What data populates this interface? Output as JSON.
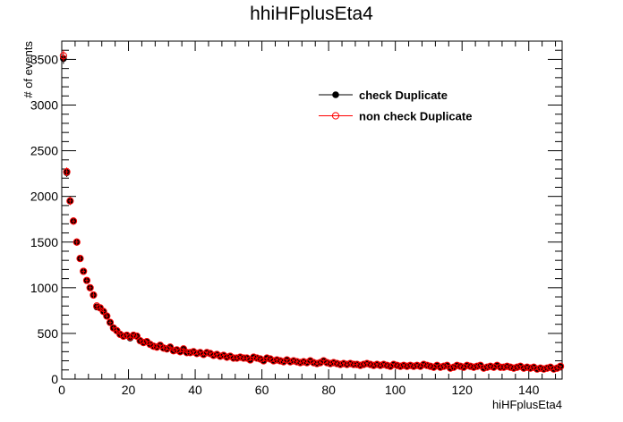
{
  "chart_data": {
    "type": "scatter",
    "title": "hhiHFplusEta4",
    "xlabel": "hiHFplusEta4",
    "ylabel": "# of events",
    "xlim": [
      0,
      150
    ],
    "ylim": [
      0,
      3700
    ],
    "x_ticks": [
      0,
      20,
      40,
      60,
      80,
      100,
      120,
      140
    ],
    "y_ticks": [
      0,
      500,
      1000,
      1500,
      2000,
      2500,
      3000,
      3500
    ],
    "grid": false,
    "legend_position": "top-right",
    "series": [
      {
        "name": "check Duplicate",
        "color": "#000000",
        "marker": "filled-circle",
        "x": [
          0.5,
          1.5,
          2.5,
          3.5,
          4.5,
          5.5,
          6.5,
          7.5,
          8.5,
          9.5,
          10.5,
          11.5,
          12.5,
          13.5,
          14.5,
          15.5,
          16.5,
          17.5,
          18.5,
          19.5,
          20.5,
          21.5,
          22.5,
          23.5,
          24.5,
          25.5,
          26.5,
          27.5,
          28.5,
          29.5,
          30.5,
          31.5,
          32.5,
          33.5,
          34.5,
          35.5,
          36.5,
          37.5,
          38.5,
          39.5,
          40.5,
          41.5,
          42.5,
          43.5,
          44.5,
          45.5,
          46.5,
          47.5,
          48.5,
          49.5,
          50.5,
          51.5,
          52.5,
          53.5,
          54.5,
          55.5,
          56.5,
          57.5,
          58.5,
          59.5,
          60.5,
          61.5,
          62.5,
          63.5,
          64.5,
          65.5,
          66.5,
          67.5,
          68.5,
          69.5,
          70.5,
          71.5,
          72.5,
          73.5,
          74.5,
          75.5,
          76.5,
          77.5,
          78.5,
          79.5,
          80.5,
          81.5,
          82.5,
          83.5,
          84.5,
          85.5,
          86.5,
          87.5,
          88.5,
          89.5,
          90.5,
          91.5,
          92.5,
          93.5,
          94.5,
          95.5,
          96.5,
          97.5,
          98.5,
          99.5,
          100.5,
          101.5,
          102.5,
          103.5,
          104.5,
          105.5,
          106.5,
          107.5,
          108.5,
          109.5,
          110.5,
          111.5,
          112.5,
          113.5,
          114.5,
          115.5,
          116.5,
          117.5,
          118.5,
          119.5,
          120.5,
          121.5,
          122.5,
          123.5,
          124.5,
          125.5,
          126.5,
          127.5,
          128.5,
          129.5,
          130.5,
          131.5,
          132.5,
          133.5,
          134.5,
          135.5,
          136.5,
          137.5,
          138.5,
          139.5,
          140.5,
          141.5,
          142.5,
          143.5,
          144.5,
          145.5,
          146.5,
          147.5,
          148.5,
          149.5
        ],
        "y": [
          3510,
          2260,
          1950,
          1730,
          1500,
          1320,
          1180,
          1080,
          1000,
          920,
          790,
          780,
          740,
          690,
          620,
          560,
          530,
          490,
          470,
          480,
          450,
          480,
          470,
          420,
          400,
          410,
          380,
          360,
          350,
          370,
          340,
          330,
          350,
          310,
          320,
          300,
          330,
          290,
          290,
          300,
          280,
          290,
          270,
          290,
          280,
          260,
          270,
          250,
          260,
          240,
          250,
          230,
          230,
          240,
          230,
          230,
          210,
          240,
          230,
          220,
          200,
          230,
          220,
          200,
          210,
          200,
          190,
          210,
          190,
          200,
          190,
          180,
          190,
          180,
          200,
          180,
          170,
          180,
          200,
          180,
          170,
          180,
          170,
          160,
          170,
          160,
          170,
          160,
          160,
          150,
          160,
          170,
          160,
          150,
          160,
          150,
          160,
          150,
          140,
          160,
          150,
          140,
          150,
          140,
          150,
          140,
          150,
          140,
          160,
          150,
          140,
          130,
          150,
          130,
          140,
          150,
          120,
          130,
          150,
          140,
          130,
          150,
          140,
          130,
          140,
          150,
          120,
          130,
          140,
          130,
          150,
          130,
          130,
          140,
          130,
          120,
          130,
          140,
          120,
          130,
          120,
          130,
          110,
          120,
          110,
          120,
          130,
          110,
          120,
          140
        ]
      },
      {
        "name": "non check Duplicate",
        "color": "#ff0000",
        "marker": "open-circle",
        "x": [
          0.5,
          1.5,
          2.5,
          3.5,
          4.5,
          5.5,
          6.5,
          7.5,
          8.5,
          9.5,
          10.5,
          11.5,
          12.5,
          13.5,
          14.5,
          15.5,
          16.5,
          17.5,
          18.5,
          19.5,
          20.5,
          21.5,
          22.5,
          23.5,
          24.5,
          25.5,
          26.5,
          27.5,
          28.5,
          29.5,
          30.5,
          31.5,
          32.5,
          33.5,
          34.5,
          35.5,
          36.5,
          37.5,
          38.5,
          39.5,
          40.5,
          41.5,
          42.5,
          43.5,
          44.5,
          45.5,
          46.5,
          47.5,
          48.5,
          49.5,
          50.5,
          51.5,
          52.5,
          53.5,
          54.5,
          55.5,
          56.5,
          57.5,
          58.5,
          59.5,
          60.5,
          61.5,
          62.5,
          63.5,
          64.5,
          65.5,
          66.5,
          67.5,
          68.5,
          69.5,
          70.5,
          71.5,
          72.5,
          73.5,
          74.5,
          75.5,
          76.5,
          77.5,
          78.5,
          79.5,
          80.5,
          81.5,
          82.5,
          83.5,
          84.5,
          85.5,
          86.5,
          87.5,
          88.5,
          89.5,
          90.5,
          91.5,
          92.5,
          93.5,
          94.5,
          95.5,
          96.5,
          97.5,
          98.5,
          99.5,
          100.5,
          101.5,
          102.5,
          103.5,
          104.5,
          105.5,
          106.5,
          107.5,
          108.5,
          109.5,
          110.5,
          111.5,
          112.5,
          113.5,
          114.5,
          115.5,
          116.5,
          117.5,
          118.5,
          119.5,
          120.5,
          121.5,
          122.5,
          123.5,
          124.5,
          125.5,
          126.5,
          127.5,
          128.5,
          129.5,
          130.5,
          131.5,
          132.5,
          133.5,
          134.5,
          135.5,
          136.5,
          137.5,
          138.5,
          139.5,
          140.5,
          141.5,
          142.5,
          143.5,
          144.5,
          145.5,
          146.5,
          147.5,
          148.5,
          149.5
        ],
        "y": [
          3540,
          2270,
          1950,
          1730,
          1500,
          1320,
          1180,
          1080,
          1000,
          920,
          800,
          780,
          740,
          690,
          620,
          560,
          530,
          490,
          470,
          480,
          460,
          480,
          470,
          420,
          400,
          410,
          380,
          360,
          350,
          370,
          340,
          330,
          350,
          310,
          320,
          300,
          330,
          290,
          290,
          300,
          280,
          290,
          270,
          290,
          280,
          260,
          270,
          250,
          260,
          240,
          250,
          230,
          230,
          240,
          230,
          230,
          210,
          240,
          230,
          220,
          200,
          230,
          220,
          200,
          210,
          200,
          190,
          210,
          190,
          200,
          190,
          180,
          190,
          180,
          200,
          180,
          170,
          180,
          200,
          180,
          170,
          180,
          170,
          160,
          170,
          160,
          170,
          160,
          160,
          150,
          160,
          170,
          160,
          150,
          160,
          150,
          160,
          150,
          140,
          160,
          150,
          140,
          150,
          140,
          150,
          140,
          150,
          140,
          160,
          150,
          140,
          130,
          150,
          130,
          140,
          150,
          120,
          130,
          150,
          140,
          130,
          150,
          140,
          130,
          140,
          150,
          120,
          130,
          140,
          130,
          150,
          130,
          130,
          140,
          130,
          120,
          130,
          140,
          120,
          130,
          120,
          130,
          110,
          120,
          110,
          120,
          130,
          110,
          120,
          140
        ]
      }
    ]
  }
}
